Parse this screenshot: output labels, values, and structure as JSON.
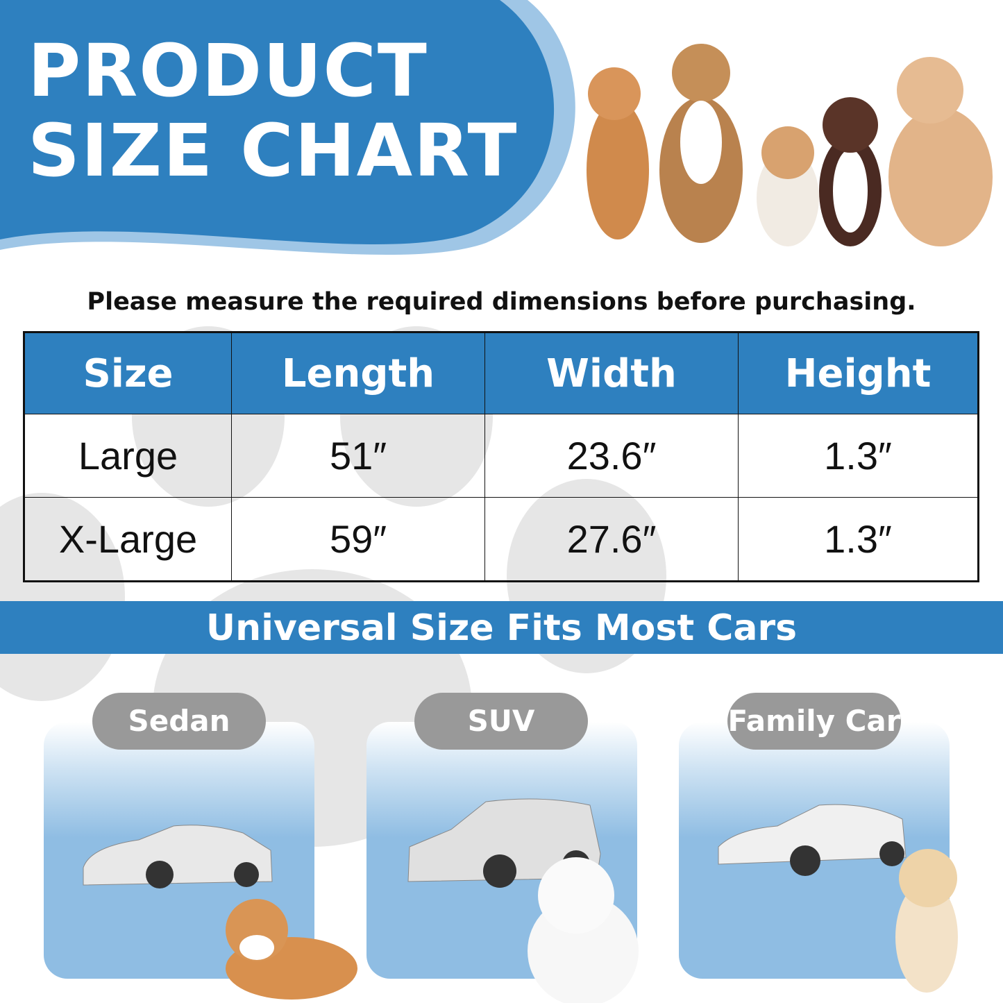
{
  "header": {
    "title_line1": "PRODUCT",
    "title_line2": "SIZE CHART"
  },
  "subtitle": "Please measure the required dimensions before purchasing.",
  "table": {
    "headers": [
      "Size",
      "Length",
      "Width",
      "Height"
    ],
    "rows": [
      [
        "Large",
        "51″",
        "23.6″",
        "1.3″"
      ],
      [
        "X-Large",
        "59″",
        "27.6″",
        "1.3″"
      ]
    ]
  },
  "banner": "Universal Size Fits Most Cars",
  "cars": [
    {
      "label": "Sedan"
    },
    {
      "label": "SUV"
    },
    {
      "label": "Family Car"
    }
  ],
  "colors": {
    "brand_blue": "#2e80bf",
    "light_blue": "#8fbde3",
    "pill_gray": "#999999"
  }
}
